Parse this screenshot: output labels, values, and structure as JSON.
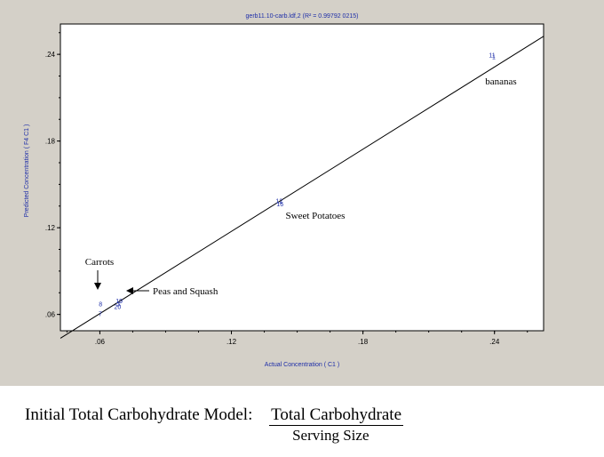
{
  "chart_data": {
    "type": "scatter",
    "title": "gerb11.10-carb.ldf,2  (R² = 0.99792 0215)",
    "xlabel": "Actual Concentration ( C1 )",
    "ylabel": "Predicted Concentration ( F4 C1 )",
    "xlim": [
      0.042,
      0.2624
    ],
    "ylim": [
      0.0487,
      0.261
    ],
    "x_ticks": [
      ".06",
      ".12",
      ".18",
      ".24"
    ],
    "x_tick_values": [
      0.06,
      0.12,
      0.18,
      0.24
    ],
    "y_ticks": [
      ".06",
      ".12",
      ".18",
      ".24"
    ],
    "y_tick_values": [
      0.06,
      0.12,
      0.18,
      0.24
    ],
    "fit_line": {
      "x": [
        0.042,
        0.2624
      ],
      "y": [
        0.0435,
        0.2525
      ]
    },
    "points": [
      {
        "label": "7",
        "x": 0.0602,
        "y": 0.0604
      },
      {
        "label": "8",
        "x": 0.0603,
        "y": 0.0671
      },
      {
        "label": "19",
        "x": 0.0688,
        "y": 0.0694
      },
      {
        "label": "3",
        "x": 0.0684,
        "y": 0.0671
      },
      {
        "label": "20",
        "x": 0.0681,
        "y": 0.0652
      },
      {
        "label": "12",
        "x": 0.1418,
        "y": 0.1384
      },
      {
        "label": "16",
        "x": 0.1422,
        "y": 0.1364
      },
      {
        "label": "11",
        "x": 0.2389,
        "y": 0.2396
      },
      {
        "label": "1",
        "x": 0.2397,
        "y": 0.2381
      }
    ],
    "annotations": {
      "bananas": "bananas",
      "sweet_potatoes": "Sweet Potatoes",
      "carrots": "Carrots",
      "peas_squash": "Peas and Squash"
    },
    "grid": false
  },
  "caption": {
    "model_label": "Initial Total Carbohydrate Model:",
    "numerator": "Total Carbohydrate",
    "denominator": "Serving Size"
  },
  "colors": {
    "panel_bg": "#d4d0c8",
    "plot_bg": "#ffffff",
    "label_blue": "#1e2ea8",
    "line": "#000000"
  }
}
